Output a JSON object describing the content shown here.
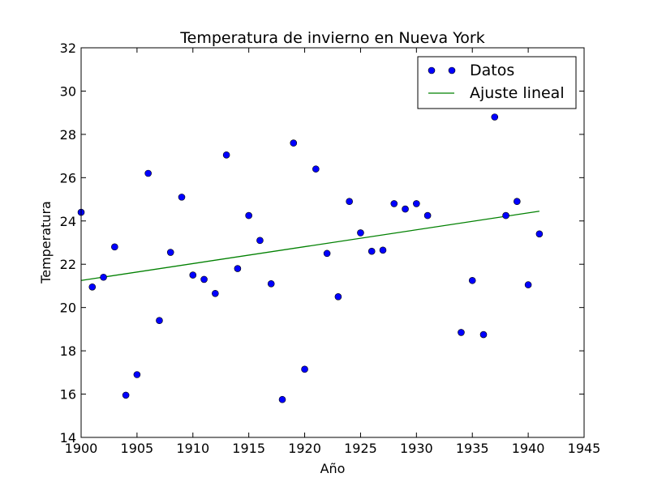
{
  "chart_data": {
    "type": "scatter",
    "title": "Temperatura de invierno en Nueva York",
    "xlabel": "Año",
    "ylabel": "Temperatura",
    "xlim": [
      1900,
      1945
    ],
    "ylim": [
      14,
      32
    ],
    "xticks": [
      1900,
      1905,
      1910,
      1915,
      1920,
      1925,
      1930,
      1935,
      1940,
      1945
    ],
    "yticks": [
      14,
      16,
      18,
      20,
      22,
      24,
      26,
      28,
      30,
      32
    ],
    "grid": false,
    "legend_position": "top-right",
    "series": [
      {
        "name": "Datos",
        "kind": "scatter",
        "color": "#0000ff",
        "points": [
          [
            1900,
            24.4
          ],
          [
            1901,
            20.95
          ],
          [
            1902,
            21.4
          ],
          [
            1903,
            22.8
          ],
          [
            1904,
            15.95
          ],
          [
            1905,
            16.9
          ],
          [
            1906,
            26.2
          ],
          [
            1907,
            19.4
          ],
          [
            1908,
            22.55
          ],
          [
            1909,
            25.1
          ],
          [
            1910,
            21.5
          ],
          [
            1911,
            21.3
          ],
          [
            1912,
            20.65
          ],
          [
            1913,
            27.05
          ],
          [
            1914,
            21.8
          ],
          [
            1915,
            24.25
          ],
          [
            1916,
            23.1
          ],
          [
            1917,
            21.1
          ],
          [
            1918,
            15.75
          ],
          [
            1919,
            27.6
          ],
          [
            1920,
            17.15
          ],
          [
            1921,
            26.4
          ],
          [
            1922,
            22.5
          ],
          [
            1923,
            20.5
          ],
          [
            1924,
            24.9
          ],
          [
            1925,
            23.45
          ],
          [
            1926,
            22.6
          ],
          [
            1927,
            22.65
          ],
          [
            1928,
            24.8
          ],
          [
            1929,
            24.55
          ],
          [
            1930,
            24.8
          ],
          [
            1931,
            24.25
          ],
          [
            1934,
            18.85
          ],
          [
            1935,
            21.25
          ],
          [
            1936,
            18.75
          ],
          [
            1937,
            28.8
          ],
          [
            1938,
            24.25
          ],
          [
            1939,
            24.9
          ],
          [
            1940,
            21.05
          ],
          [
            1941,
            23.4
          ]
        ]
      },
      {
        "name": "Ajuste lineal",
        "kind": "line",
        "color": "#008000",
        "points": [
          [
            1900,
            21.25
          ],
          [
            1941,
            24.45
          ]
        ]
      }
    ]
  }
}
